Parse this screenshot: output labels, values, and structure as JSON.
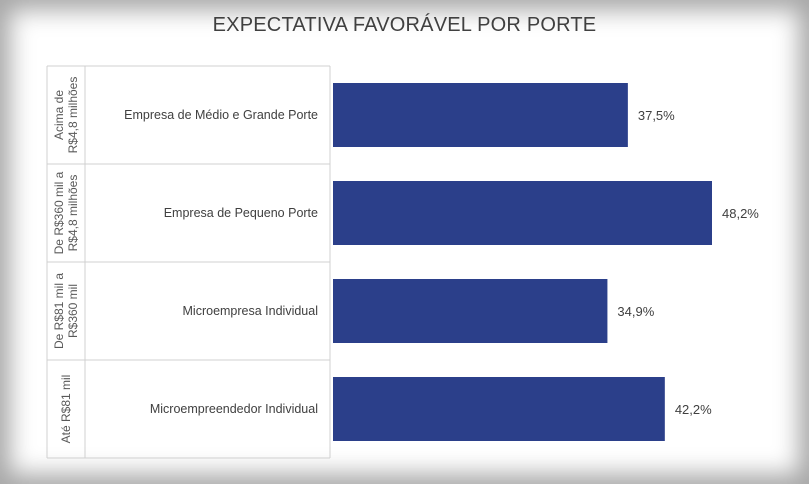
{
  "chart_data": {
    "type": "bar",
    "orientation": "horizontal",
    "title": "EXPECTATIVA FAVORÁVEL POR PORTE",
    "xlabel": "",
    "ylabel": "",
    "xlim": [
      0,
      50
    ],
    "bar_color": "#2b3f8a",
    "categories": [
      {
        "group": [
          "Acima de",
          "R$4,8 milhões"
        ],
        "name": "Empresa de Médio e Grande Porte",
        "value": 37.5,
        "label": "37,5%"
      },
      {
        "group": [
          "De R$360 mil a",
          "R$4,8 milhões"
        ],
        "name": "Empresa de Pequeno Porte",
        "value": 48.2,
        "label": "48,2%"
      },
      {
        "group": [
          "De R$81 mil a",
          "R$360 mil"
        ],
        "name": "Microempresa Individual",
        "value": 34.9,
        "label": "34,9%"
      },
      {
        "group": [
          "Até R$81 mil"
        ],
        "name": "Microempreendedor Individual",
        "value": 42.2,
        "label": "42,2%"
      }
    ]
  }
}
